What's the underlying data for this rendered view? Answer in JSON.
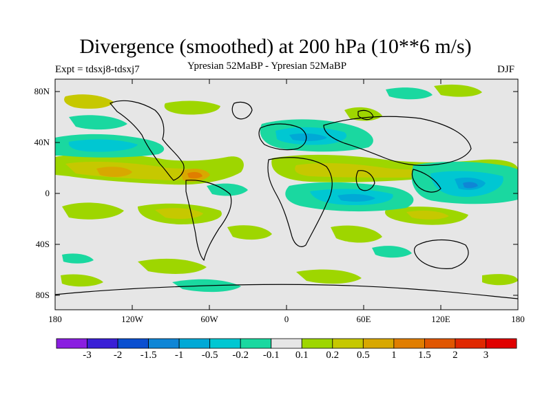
{
  "title": "Divergence (smoothed) at 200 hPa (10**6 m/s)",
  "subtitle_left": "Expt = tdsxj8-tdsxj7",
  "subtitle_center": "Ypresian  52MaBP - Ypresian  52MaBP",
  "subtitle_right": "DJF",
  "lat_ticks": [
    "80N",
    "40N",
    "0",
    "40S",
    "80S"
  ],
  "lon_ticks": [
    "180",
    "120W",
    "60W",
    "0",
    "60E",
    "120E",
    "180"
  ],
  "colorbar": {
    "labels": [
      "-3",
      "-2",
      "-1.5",
      "-1",
      "-0.5",
      "-0.2",
      "-0.1",
      "0.1",
      "0.2",
      "0.5",
      "1",
      "1.5",
      "2",
      "3"
    ],
    "colors": [
      "#8a1ee0",
      "#3a1fd6",
      "#0a4fd0",
      "#0f86d6",
      "#00a9d6",
      "#00c7d2",
      "#1ad8a0",
      "#e6e6e6",
      "#9ed600",
      "#c6c800",
      "#d8a800",
      "#e07e00",
      "#e05600",
      "#e02800",
      "#e00000"
    ]
  },
  "field_colors": {
    "background": "#e6e6e6",
    "neg_weak": "#1ad8a0",
    "neg_mid": "#00c7d2",
    "neg_strong": "#00a9d6",
    "neg_stronger": "#0f86d6",
    "pos_weak": "#9ed600",
    "pos_mid": "#c6c800",
    "pos_strong": "#d8a800",
    "pos_stronger": "#e07e00"
  }
}
